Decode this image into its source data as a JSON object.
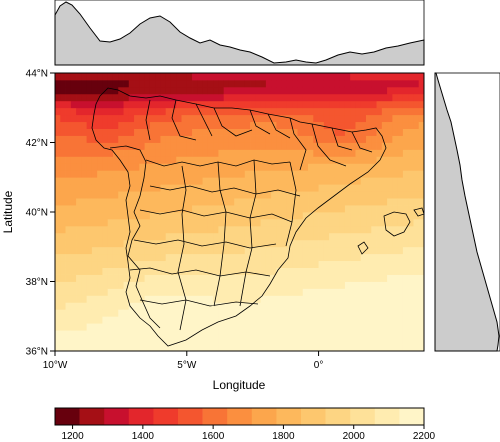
{
  "chart_data": {
    "type": "heatmap",
    "title": "",
    "xlabel": "Longitude",
    "ylabel": "Latitude",
    "xlim": [
      -10,
      4
    ],
    "ylim": [
      36,
      44
    ],
    "x_ticks": [
      {
        "value": -10,
        "label": "10°W"
      },
      {
        "value": -5,
        "label": "5°W"
      },
      {
        "value": 0,
        "label": "0°"
      }
    ],
    "y_ticks": [
      {
        "value": 36,
        "label": "36°N"
      },
      {
        "value": 38,
        "label": "38°N"
      },
      {
        "value": 40,
        "label": "40°N"
      },
      {
        "value": 42,
        "label": "42°N"
      },
      {
        "value": 44,
        "label": "44°N"
      }
    ],
    "colorbar": {
      "min": 1150,
      "max": 2200,
      "ticks": [
        1200,
        1400,
        1600,
        1800,
        2000,
        2200
      ],
      "colors": [
        "#67000d",
        "#a50f15",
        "#c8102e",
        "#e3262c",
        "#ef3b2c",
        "#f4562f",
        "#f87436",
        "#fb8f3f",
        "#fca64c",
        "#fdb85c",
        "#fdc76e",
        "#fdd583",
        "#fee199",
        "#ffecb0",
        "#fff5c8"
      ]
    },
    "field_description": "Values lowest (~1200) along the Cantabrian coast and northern Galicia; ~1500-1700 over the northern plateau and Ebro region; ~1800-2000 over central Spain; highest (~2100-2200) in the south-west and Andalusia.",
    "marginal_top": {
      "axis": "longitude",
      "description": "Column means: high at western edge, dipping around 7°W-3°W, lowest near 1°W-0°, rising again to the east"
    },
    "marginal_right": {
      "axis": "latitude",
      "description": "Row means: small near 44°N, increasing steadily toward 36°N"
    }
  }
}
